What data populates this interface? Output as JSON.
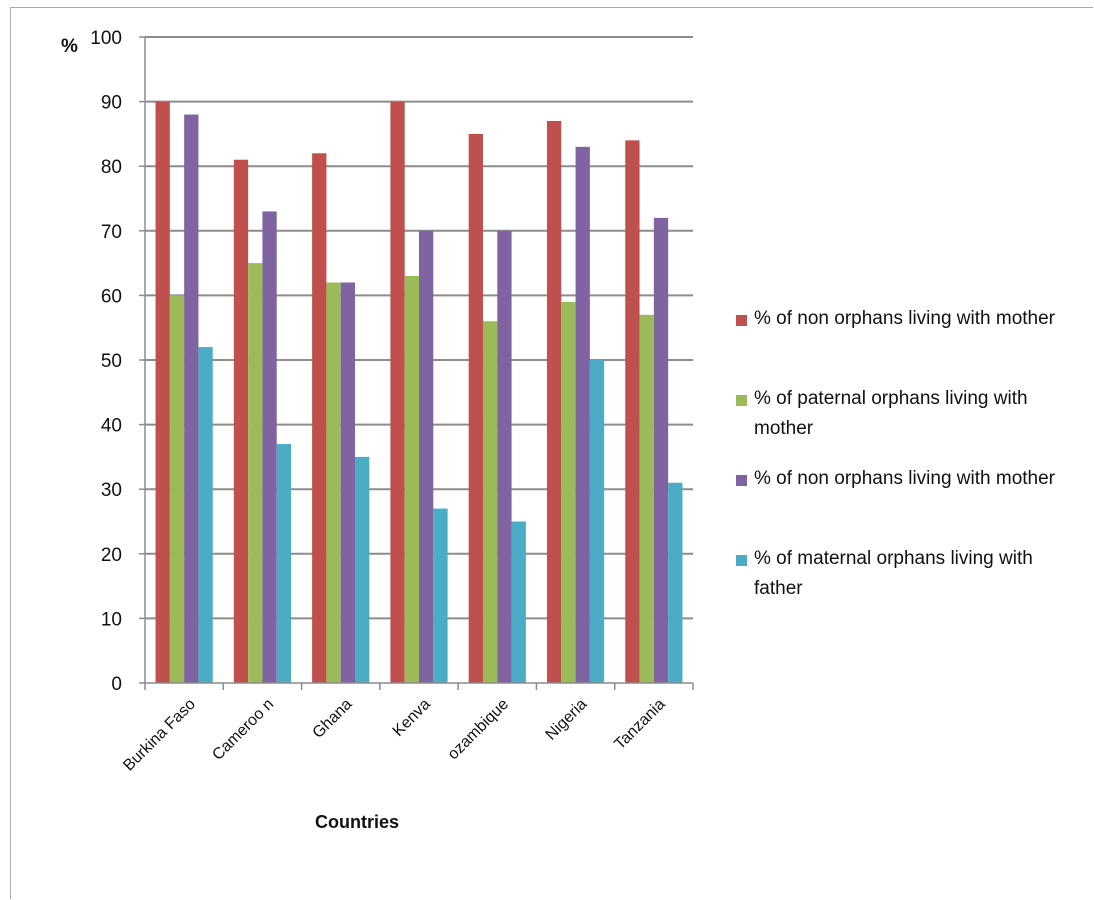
{
  "chart_data": {
    "type": "bar",
    "title": "",
    "xlabel": "Countries",
    "ylabel": "%",
    "ylim": [
      0,
      100
    ],
    "yticks": [
      0,
      10,
      20,
      30,
      40,
      50,
      60,
      70,
      80,
      90,
      100
    ],
    "grid": true,
    "legend_position": "right",
    "categories": [
      "Burkina Faso",
      "Cameroo n",
      "Ghana",
      "Kenva",
      "ozambique",
      "Nigeria",
      "Tanzania"
    ],
    "series": [
      {
        "name": "% of non orphans living with mother",
        "color": "#c0504d",
        "values": [
          90,
          81,
          82,
          90,
          85,
          87,
          84
        ]
      },
      {
        "name": "% of paternal orphans living with mother",
        "color": "#9bbb59",
        "values": [
          60,
          65,
          62,
          63,
          56,
          59,
          57
        ]
      },
      {
        "name": "% of non orphans living with mother",
        "color": "#8064a2",
        "values": [
          88,
          73,
          62,
          70,
          70,
          83,
          72
        ]
      },
      {
        "name": "% of maternal orphans living with father",
        "color": "#4bacc6",
        "values": [
          52,
          37,
          35,
          27,
          25,
          50,
          31
        ]
      }
    ]
  }
}
